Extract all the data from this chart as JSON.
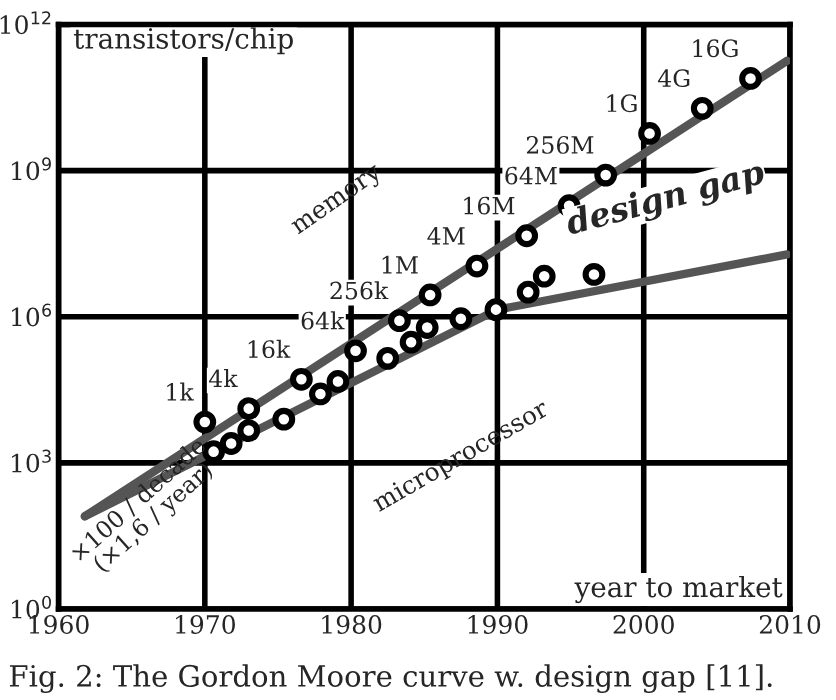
{
  "chart_data": {
    "type": "scatter",
    "ylabel": "transistors/chip",
    "xlabel": "year to market",
    "xlim": [
      1960,
      2010
    ],
    "xticks": [
      1960,
      1970,
      1980,
      1990,
      2000,
      2010
    ],
    "log": "y",
    "ylim": [
      1,
      1000000000000.0
    ],
    "yticks": [
      {
        "value": 1,
        "label": "10$^{0}$"
      },
      {
        "value": 1000,
        "label": "10$^{3}$"
      },
      {
        "value": 1000000,
        "label": "10$^{6}$"
      },
      {
        "value": 1000000000,
        "label": "10$^{9}$"
      },
      {
        "value": 1000000000000,
        "label": "10$^{12}$"
      }
    ],
    "grid": true,
    "series": [
      {
        "type": "line",
        "color": "#555555",
        "x": [
          1961.8,
          2009.8
        ],
        "values": [
          80,
          180000000000
        ]
      },
      {
        "type": "line",
        "color": "#555555",
        "x": [
          1961.8,
          1990,
          2009.8
        ],
        "values": [
          80,
          1400000,
          19000000
        ]
      },
      {
        "marker": "circle",
        "color": "#000000",
        "x": [
          1970,
          1973,
          1976.6,
          1980.3,
          1983.3,
          1985.4,
          1988.6,
          1992,
          1994.9,
          1997.4,
          2000.4,
          2004,
          2007.3
        ],
        "values": [
          6900,
          13000,
          52000,
          200000,
          830000,
          2800000,
          11000000,
          46000000,
          190000000,
          810000000,
          5800000000,
          19000000000,
          78000000000
        ]
      },
      {
        "marker": "circle",
        "color": "#000000",
        "x": [
          1970.6,
          1971.8,
          1973,
          1975.4,
          1977.9,
          1979.1,
          1982.5,
          1984.1,
          1985.2,
          1987.5,
          1989.9,
          1992.1,
          1993.2,
          1996.6
        ],
        "values": [
          1700,
          2500,
          4600,
          7900,
          26000,
          47000,
          140000,
          300000,
          600000,
          910000,
          1400000,
          3200000,
          6800000,
          7400000
        ]
      }
    ],
    "annotations": [
      "memory",
      "design gap",
      "microprocessor",
      "×100 / decade\n(×1,6 / year)",
      "Fig. 2: The Gordon Moore curve w. design gap [11].",
      {
        "text": "1k",
        "x": 1970,
        "y": 6900
      },
      {
        "text": "4k",
        "x": 1973,
        "y": 13000
      },
      {
        "text": "16k",
        "x": 1976.6,
        "y": 52000
      },
      {
        "text": "64k",
        "x": 1980.3,
        "y": 200000
      },
      {
        "text": "256k",
        "x": 1983.3,
        "y": 830000
      },
      {
        "text": "1M",
        "x": 1985.4,
        "y": 2800000
      },
      {
        "text": "4M",
        "x": 1988.6,
        "y": 11000000
      },
      {
        "text": "16M",
        "x": 1992,
        "y": 46000000
      },
      {
        "text": "64M",
        "x": 1994.9,
        "y": 190000000
      },
      {
        "text": "256M",
        "x": 1997.4,
        "y": 810000000
      },
      {
        "text": "1G",
        "x": 2000.4,
        "y": 5800000000
      },
      {
        "text": "4G",
        "x": 2004,
        "y": 19000000000
      },
      {
        "text": "16G",
        "x": 2007.3,
        "y": 78000000000
      }
    ]
  }
}
